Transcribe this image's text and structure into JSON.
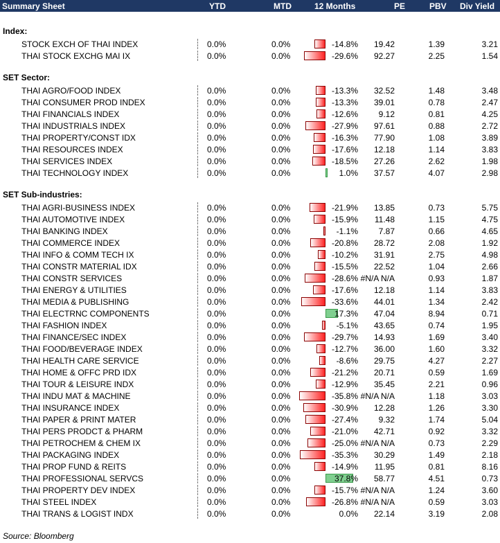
{
  "header": {
    "title": "Summary Sheet",
    "ytd": "YTD",
    "mtd": "MTD",
    "months12": "12 Months",
    "pe": "PE",
    "pbv": "PBV",
    "divyield": "Div Yield"
  },
  "sections": [
    {
      "label": "Index:",
      "rows": [
        {
          "name": "STOCK EXCH OF THAI INDEX",
          "ytd": "0.0%",
          "mtd": "0.0%",
          "m12": "-14.8%",
          "v": -14.8,
          "pe": "19.42",
          "pbv": "1.39",
          "dy": "3.21"
        },
        {
          "name": "THAI STOCK EXCHG MAI IX",
          "ytd": "0.0%",
          "mtd": "0.0%",
          "m12": "-29.6%",
          "v": -29.6,
          "pe": "92.27",
          "pbv": "2.25",
          "dy": "1.54"
        }
      ]
    },
    {
      "label": "SET Sector:",
      "rows": [
        {
          "name": "THAI AGRO/FOOD INDEX",
          "ytd": "0.0%",
          "mtd": "0.0%",
          "m12": "-13.3%",
          "v": -13.3,
          "pe": "32.52",
          "pbv": "1.48",
          "dy": "3.48"
        },
        {
          "name": "THAI CONSUMER PROD INDEX",
          "ytd": "0.0%",
          "mtd": "0.0%",
          "m12": "-13.3%",
          "v": -13.3,
          "pe": "39.01",
          "pbv": "0.78",
          "dy": "2.47"
        },
        {
          "name": "THAI FINANCIALS INDEX",
          "ytd": "0.0%",
          "mtd": "0.0%",
          "m12": "-12.6%",
          "v": -12.6,
          "pe": "9.12",
          "pbv": "0.81",
          "dy": "4.25"
        },
        {
          "name": "THAI INDUSTRIALS INDEX",
          "ytd": "0.0%",
          "mtd": "0.0%",
          "m12": "-27.9%",
          "v": -27.9,
          "pe": "97.61",
          "pbv": "0.88",
          "dy": "2.72"
        },
        {
          "name": "THAI PROPERTY/CONST IDX",
          "ytd": "0.0%",
          "mtd": "0.0%",
          "m12": "-16.3%",
          "v": -16.3,
          "pe": "77.90",
          "pbv": "1.08",
          "dy": "3.89"
        },
        {
          "name": "THAI RESOURCES INDEX",
          "ytd": "0.0%",
          "mtd": "0.0%",
          "m12": "-17.6%",
          "v": -17.6,
          "pe": "12.18",
          "pbv": "1.14",
          "dy": "3.83"
        },
        {
          "name": "THAI SERVICES INDEX",
          "ytd": "0.0%",
          "mtd": "0.0%",
          "m12": "-18.5%",
          "v": -18.5,
          "pe": "27.26",
          "pbv": "2.62",
          "dy": "1.98"
        },
        {
          "name": "THAI TECHNOLOGY INDEX",
          "ytd": "0.0%",
          "mtd": "0.0%",
          "m12": "1.0%",
          "v": 1.0,
          "pe": "37.57",
          "pbv": "4.07",
          "dy": "2.98"
        }
      ]
    },
    {
      "label": "SET Sub-industries:",
      "rows": [
        {
          "name": "THAI AGRI-BUSINESS INDEX",
          "ytd": "0.0%",
          "mtd": "0.0%",
          "m12": "-21.9%",
          "v": -21.9,
          "pe": "13.85",
          "pbv": "0.73",
          "dy": "5.75"
        },
        {
          "name": "THAI AUTOMOTIVE INDEX",
          "ytd": "0.0%",
          "mtd": "0.0%",
          "m12": "-15.9%",
          "v": -15.9,
          "pe": "11.48",
          "pbv": "1.15",
          "dy": "4.75"
        },
        {
          "name": "THAI BANKING INDEX",
          "ytd": "0.0%",
          "mtd": "0.0%",
          "m12": "-1.1%",
          "v": -1.1,
          "pe": "7.87",
          "pbv": "0.66",
          "dy": "4.65"
        },
        {
          "name": "THAI COMMERCE INDEX",
          "ytd": "0.0%",
          "mtd": "0.0%",
          "m12": "-20.8%",
          "v": -20.8,
          "pe": "28.72",
          "pbv": "2.08",
          "dy": "1.92"
        },
        {
          "name": "THAI INFO & COMM TECH IX",
          "ytd": "0.0%",
          "mtd": "0.0%",
          "m12": "-10.2%",
          "v": -10.2,
          "pe": "31.91",
          "pbv": "2.75",
          "dy": "4.98"
        },
        {
          "name": "THAI CONSTR MATERIAL IDX",
          "ytd": "0.0%",
          "mtd": "0.0%",
          "m12": "-15.5%",
          "v": -15.5,
          "pe": "22.52",
          "pbv": "1.04",
          "dy": "2.66"
        },
        {
          "name": "THAI CONSTR SERVICES",
          "ytd": "0.0%",
          "mtd": "0.0%",
          "m12": "-28.6%",
          "v": -28.6,
          "pe": "#N/A N/A",
          "pbv": "0.93",
          "dy": "1.87"
        },
        {
          "name": "THAI ENERGY & UTILITIES",
          "ytd": "0.0%",
          "mtd": "0.0%",
          "m12": "-17.6%",
          "v": -17.6,
          "pe": "12.18",
          "pbv": "1.14",
          "dy": "3.83"
        },
        {
          "name": "THAI MEDIA & PUBLISHING",
          "ytd": "0.0%",
          "mtd": "0.0%",
          "m12": "-33.6%",
          "v": -33.6,
          "pe": "44.01",
          "pbv": "1.34",
          "dy": "2.42"
        },
        {
          "name": "THAI ELECTRNC COMPONENTS",
          "ytd": "0.0%",
          "mtd": "0.0%",
          "m12": "17.3%",
          "v": 17.3,
          "pe": "47.04",
          "pbv": "8.94",
          "dy": "0.71"
        },
        {
          "name": "THAI FASHION INDEX",
          "ytd": "0.0%",
          "mtd": "0.0%",
          "m12": "-5.1%",
          "v": -5.1,
          "pe": "43.65",
          "pbv": "0.74",
          "dy": "1.95"
        },
        {
          "name": "THAI FINANCE/SEC INDEX",
          "ytd": "0.0%",
          "mtd": "0.0%",
          "m12": "-29.7%",
          "v": -29.7,
          "pe": "14.93",
          "pbv": "1.69",
          "dy": "3.40"
        },
        {
          "name": "THAI FOOD/BEVERAGE INDEX",
          "ytd": "0.0%",
          "mtd": "0.0%",
          "m12": "-12.7%",
          "v": -12.7,
          "pe": "36.00",
          "pbv": "1.60",
          "dy": "3.32"
        },
        {
          "name": "THAI HEALTH CARE SERVICE",
          "ytd": "0.0%",
          "mtd": "0.0%",
          "m12": "-8.6%",
          "v": -8.6,
          "pe": "29.75",
          "pbv": "4.27",
          "dy": "2.27"
        },
        {
          "name": "THAI HOME & OFFC PRD IDX",
          "ytd": "0.0%",
          "mtd": "0.0%",
          "m12": "-21.2%",
          "v": -21.2,
          "pe": "20.71",
          "pbv": "0.59",
          "dy": "1.69"
        },
        {
          "name": "THAI TOUR & LEISURE INDX",
          "ytd": "0.0%",
          "mtd": "0.0%",
          "m12": "-12.9%",
          "v": -12.9,
          "pe": "35.45",
          "pbv": "2.21",
          "dy": "0.96"
        },
        {
          "name": "THAI INDU MAT & MACHINE",
          "ytd": "0.0%",
          "mtd": "0.0%",
          "m12": "-35.8%",
          "v": -35.8,
          "pe": "#N/A N/A",
          "pbv": "1.18",
          "dy": "3.03"
        },
        {
          "name": "THAI INSURANCE INDEX",
          "ytd": "0.0%",
          "mtd": "0.0%",
          "m12": "-30.9%",
          "v": -30.9,
          "pe": "12.28",
          "pbv": "1.26",
          "dy": "3.30"
        },
        {
          "name": "THAI PAPER & PRINT MATER",
          "ytd": "0.0%",
          "mtd": "0.0%",
          "m12": "-27.4%",
          "v": -27.4,
          "pe": "9.32",
          "pbv": "1.74",
          "dy": "5.04"
        },
        {
          "name": "THAI PERS PRODCT & PHARM",
          "ytd": "0.0%",
          "mtd": "0.0%",
          "m12": "-21.0%",
          "v": -21.0,
          "pe": "42.71",
          "pbv": "0.92",
          "dy": "3.32"
        },
        {
          "name": "THAI PETROCHEM & CHEM IX",
          "ytd": "0.0%",
          "mtd": "0.0%",
          "m12": "-25.0%",
          "v": -25.0,
          "pe": "#N/A N/A",
          "pbv": "0.73",
          "dy": "2.29"
        },
        {
          "name": "THAI PACKAGING INDEX",
          "ytd": "0.0%",
          "mtd": "0.0%",
          "m12": "-35.3%",
          "v": -35.3,
          "pe": "30.29",
          "pbv": "1.49",
          "dy": "2.18"
        },
        {
          "name": "THAI PROP FUND & REITS",
          "ytd": "0.0%",
          "mtd": "0.0%",
          "m12": "-14.9%",
          "v": -14.9,
          "pe": "11.95",
          "pbv": "0.81",
          "dy": "8.16"
        },
        {
          "name": "THAI PROFESSIONAL SERVCS",
          "ytd": "0.0%",
          "mtd": "0.0%",
          "m12": "37.8%",
          "v": 37.8,
          "pe": "58.77",
          "pbv": "4.51",
          "dy": "0.73"
        },
        {
          "name": "THAI PROPERTY DEV INDEX",
          "ytd": "0.0%",
          "mtd": "0.0%",
          "m12": "-15.7%",
          "v": -15.7,
          "pe": "#N/A N/A",
          "pbv": "1.24",
          "dy": "3.60"
        },
        {
          "name": "THAI STEEL INDEX",
          "ytd": "0.0%",
          "mtd": "0.0%",
          "m12": "-26.8%",
          "v": -26.8,
          "pe": "#N/A N/A",
          "pbv": "0.59",
          "dy": "3.03"
        },
        {
          "name": "THAI TRANS & LOGIST INDX",
          "ytd": "0.0%",
          "mtd": "0.0%",
          "m12": "0.0%",
          "v": 0.0,
          "pe": "22.14",
          "pbv": "3.19",
          "dy": "2.08"
        }
      ]
    }
  ],
  "source": "Source: Bloomberg",
  "colors": {
    "header_bg": "#1f3864",
    "neg_bar": "#ff2222",
    "pos_bar": "#7fcf8f"
  }
}
